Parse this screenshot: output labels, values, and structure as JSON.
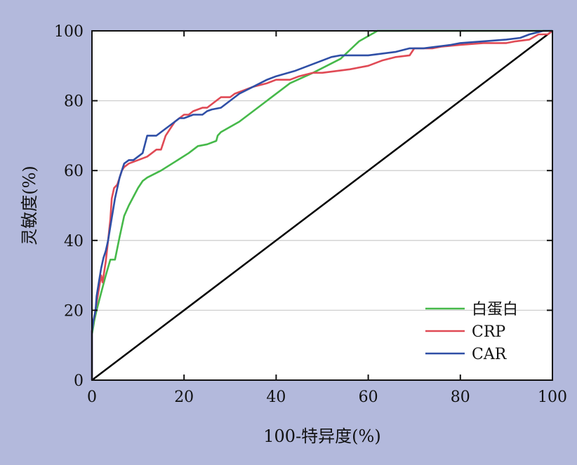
{
  "chart_data": {
    "type": "line",
    "title": "",
    "xlabel": "100-特异度(%)",
    "ylabel": "灵敏度(%)",
    "xlim": [
      0,
      100
    ],
    "ylim": [
      0,
      100
    ],
    "x_ticks": [
      0,
      20,
      40,
      60,
      80,
      100
    ],
    "y_ticks": [
      0,
      20,
      40,
      60,
      80,
      100
    ],
    "grid": "horizontal",
    "legend_position": "bottom-right",
    "reference_line": {
      "x": [
        0,
        100
      ],
      "y": [
        0,
        100
      ],
      "color": "#000000"
    },
    "series": [
      {
        "name": "白蛋白",
        "color": "#46b94a",
        "x": [
          0,
          0,
          0.5,
          1,
          2,
          3,
          4,
          5,
          6,
          7,
          8,
          10,
          11,
          12,
          15,
          18,
          21,
          23,
          25,
          27,
          27.3,
          28,
          32,
          38,
          43,
          48,
          54,
          58,
          62,
          70,
          80,
          90,
          100
        ],
        "y": [
          0,
          13,
          17,
          20,
          25,
          30,
          34.5,
          34.5,
          41,
          47,
          50,
          55,
          57,
          58,
          60,
          62.5,
          65,
          67,
          67.5,
          68.5,
          70,
          71,
          74,
          80,
          85,
          88,
          92,
          97,
          100,
          100,
          100,
          100,
          100
        ]
      },
      {
        "name": "CRP",
        "color": "#e04a55",
        "x": [
          0,
          0,
          0.3,
          0.5,
          1,
          1.5,
          2,
          2.3,
          3,
          3.5,
          4,
          4.3,
          4.8,
          5.5,
          6,
          6.5,
          7,
          8,
          10,
          12,
          13,
          14,
          15,
          16,
          17,
          18,
          19,
          20,
          21,
          22,
          24,
          25,
          26,
          27,
          28,
          30,
          31,
          33,
          35,
          38,
          40,
          43,
          45,
          48,
          50,
          53,
          56,
          60,
          63,
          66,
          69,
          70,
          72,
          74,
          76,
          80,
          85,
          90,
          92,
          95,
          97,
          99,
          100
        ],
        "y": [
          0,
          14,
          17,
          18,
          22,
          26,
          30,
          28,
          34,
          40,
          46,
          52,
          55,
          56,
          58,
          60,
          61,
          62,
          63,
          64,
          65,
          66,
          66,
          70,
          72,
          74,
          75,
          76,
          76,
          77,
          78,
          78,
          79,
          80,
          81,
          81,
          82,
          83,
          84,
          85,
          86,
          86,
          87,
          88,
          88,
          88.5,
          89,
          90,
          91.5,
          92.5,
          93,
          95,
          95,
          95,
          95.5,
          96,
          96.5,
          96.5,
          97,
          97.5,
          99,
          99,
          100
        ]
      },
      {
        "name": "CAR",
        "color": "#2f4fa6",
        "x": [
          0,
          0,
          0.3,
          0.8,
          1,
          1.5,
          2,
          2.5,
          3,
          3.5,
          4,
          4.5,
          5,
          5.5,
          6,
          6.5,
          7,
          8,
          9,
          10,
          11,
          12,
          13,
          14,
          15,
          16,
          17,
          18,
          19,
          20,
          21,
          22,
          23,
          24,
          25,
          26,
          28,
          30,
          32,
          35,
          38,
          40,
          44,
          47,
          50,
          52,
          54,
          56,
          58,
          60,
          63,
          66,
          69,
          72,
          75,
          78,
          80,
          85,
          90,
          93,
          95,
          98,
          100
        ],
        "y": [
          0,
          14,
          17,
          20,
          24,
          28,
          32,
          35,
          37,
          40,
          44,
          48,
          52,
          55,
          58,
          60,
          62,
          63,
          63,
          64,
          65,
          70,
          70,
          70,
          71,
          72,
          73,
          74,
          75,
          75,
          75.5,
          76,
          76,
          76,
          77,
          77.5,
          78,
          80,
          82,
          84,
          86,
          87,
          88.5,
          90,
          91.5,
          92.5,
          93,
          93,
          93,
          93,
          93.5,
          94,
          95,
          95,
          95.5,
          96,
          96.5,
          97,
          97.5,
          98,
          99,
          100,
          100
        ]
      }
    ]
  }
}
